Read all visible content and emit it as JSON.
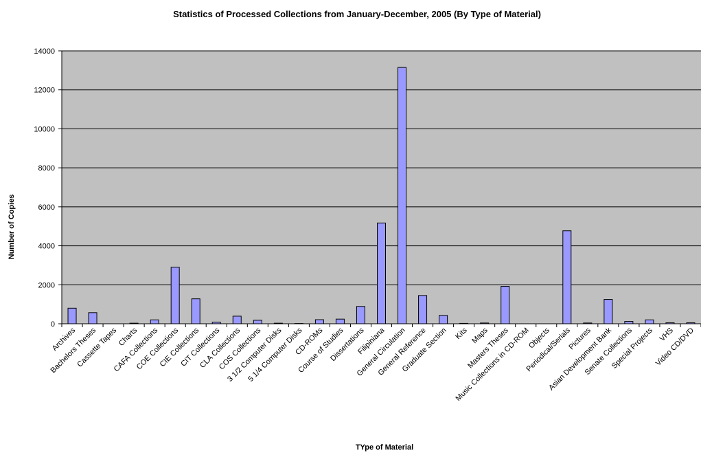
{
  "chart_data": {
    "type": "bar",
    "title": "Statistics of Processed Collections from January-December, 2005 (By Type of Material)",
    "xlabel": "TYpe of Material",
    "ylabel": "Number of Copies",
    "ylim": [
      0,
      14000
    ],
    "yticks": [
      0,
      2000,
      4000,
      6000,
      8000,
      10000,
      12000,
      14000
    ],
    "grid": true,
    "legend": "none",
    "categories": [
      "Archives",
      "Bachelors Theses",
      "Cassette Tapes",
      "Charts",
      "CAFA Collections",
      "COE Collections",
      "CIE Collections",
      "CIT Collections",
      "CLA Collections",
      "COS Collections",
      "3 1/2 Computer Disks",
      "5 1/4 Computer Disks",
      "CD-ROMs",
      "Course of Studies",
      "Dissertations",
      "Filipiniana",
      "General Circulation",
      "General Reference",
      "Graduate Section",
      "Kits",
      "Maps",
      "Masters Theses",
      "Music Collections in CD-ROM",
      "Objects",
      "Periodical/Serials",
      "Pictures",
      "Asian Development Bank",
      "Senate Collections",
      "Special Projects",
      "VHS",
      "Video CD/DVD"
    ],
    "values": [
      800,
      570,
      0,
      30,
      200,
      2900,
      1280,
      80,
      390,
      180,
      30,
      15,
      210,
      240,
      890,
      5170,
      13150,
      1450,
      430,
      20,
      40,
      1920,
      0,
      0,
      4770,
      40,
      1250,
      120,
      200,
      50,
      50
    ],
    "colors": {
      "bar_fill": "#9999ff",
      "bar_stroke": "#000000",
      "plot_bg": "#c0c0c0",
      "grid": "#000000"
    }
  }
}
